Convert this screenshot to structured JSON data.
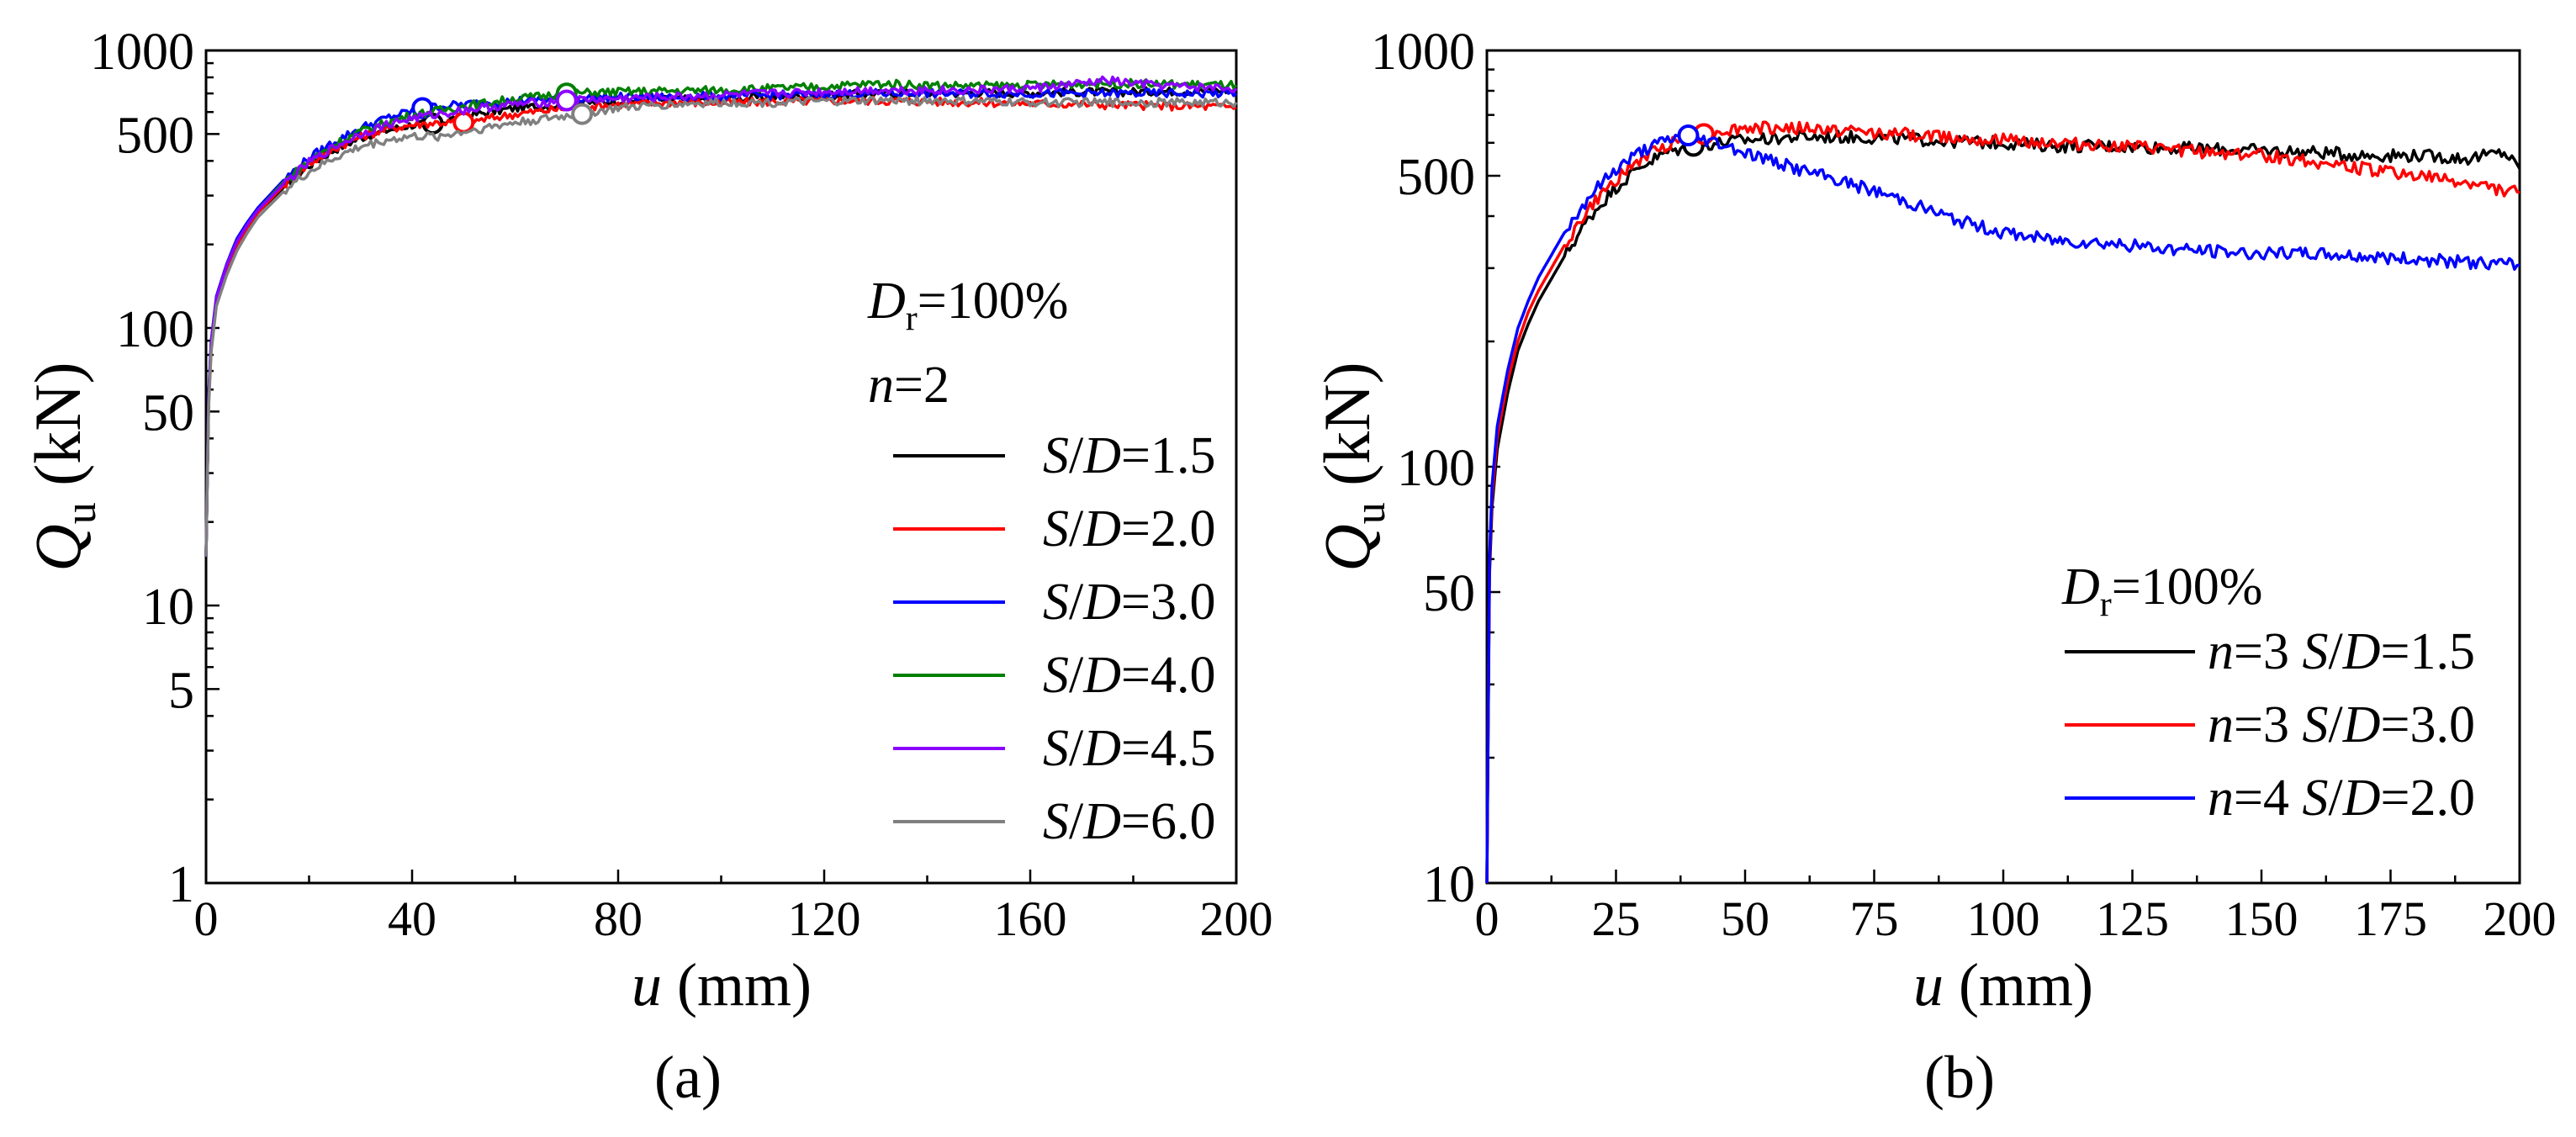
{
  "chart_data": [
    {
      "panel_label": "(a)",
      "type": "line",
      "y_scale": "log",
      "xlabel": "u (mm)",
      "ylabel": "Q_u (kN)",
      "xlim": [
        0,
        200
      ],
      "ylim": [
        1,
        1000
      ],
      "x_ticks": [
        0,
        40,
        80,
        120,
        160,
        200
      ],
      "y_ticks": [
        1,
        5,
        10,
        50,
        100,
        500,
        1000
      ],
      "legend_title_lines": [
        "D_r=100%",
        "n=2"
      ],
      "legend_placement": "right",
      "series": [
        {
          "name": "S/D=1.5",
          "color": "#000000",
          "label_parts": [
            "S",
            "/",
            "D",
            "=1.5"
          ],
          "peak": [
            44,
            545
          ],
          "x": [
            0,
            0.5,
            1,
            2,
            4,
            6,
            8,
            10,
            15,
            20,
            25,
            30,
            35,
            40,
            44,
            50,
            60,
            70,
            80,
            90,
            100,
            110,
            120,
            130,
            140,
            150,
            160,
            170,
            180,
            190,
            200
          ],
          "y": [
            15,
            55,
            85,
            125,
            165,
            200,
            230,
            260,
            320,
            385,
            440,
            485,
            515,
            540,
            545,
            580,
            620,
            640,
            660,
            665,
            670,
            680,
            690,
            700,
            700,
            705,
            705,
            710,
            710,
            715,
            720
          ]
        },
        {
          "name": "S/D=2.0",
          "color": "#ff0000",
          "label_parts": [
            "S",
            "/",
            "D",
            "=2.0"
          ],
          "peak": [
            50,
            550
          ],
          "x": [
            0,
            0.5,
            1,
            2,
            4,
            6,
            8,
            10,
            15,
            20,
            25,
            30,
            35,
            40,
            45,
            50,
            60,
            70,
            80,
            90,
            100,
            110,
            120,
            130,
            140,
            150,
            160,
            170,
            180,
            190,
            200
          ],
          "y": [
            15,
            55,
            85,
            125,
            165,
            200,
            230,
            260,
            325,
            390,
            445,
            490,
            520,
            540,
            550,
            550,
            590,
            620,
            640,
            650,
            650,
            655,
            660,
            660,
            655,
            650,
            645,
            640,
            635,
            630,
            625
          ]
        },
        {
          "name": "S/D=3.0",
          "color": "#0000ff",
          "label_parts": [
            "S",
            "/",
            "D",
            "=3.0"
          ],
          "peak": [
            42,
            620
          ],
          "x": [
            0,
            0.5,
            1,
            2,
            4,
            6,
            8,
            10,
            15,
            20,
            25,
            30,
            35,
            40,
            42,
            50,
            60,
            70,
            80,
            90,
            100,
            110,
            120,
            130,
            140,
            150,
            160,
            170,
            180,
            190,
            200
          ],
          "y": [
            15,
            58,
            90,
            130,
            170,
            210,
            240,
            270,
            340,
            410,
            470,
            525,
            570,
            605,
            620,
            640,
            660,
            670,
            680,
            680,
            685,
            690,
            695,
            700,
            700,
            700,
            700,
            700,
            700,
            700,
            700
          ]
        },
        {
          "name": "S/D=4.0",
          "color": "#008000",
          "label_parts": [
            "S",
            "/",
            "D",
            "=4.0"
          ],
          "peak": [
            70,
            700
          ],
          "x": [
            0,
            0.5,
            1,
            2,
            4,
            6,
            8,
            10,
            15,
            20,
            25,
            30,
            35,
            40,
            50,
            60,
            70,
            80,
            90,
            100,
            110,
            120,
            130,
            140,
            150,
            160,
            170,
            180,
            190,
            200
          ],
          "y": [
            15,
            56,
            88,
            128,
            168,
            205,
            235,
            265,
            335,
            400,
            460,
            510,
            550,
            585,
            630,
            670,
            700,
            710,
            715,
            720,
            730,
            740,
            760,
            750,
            745,
            750,
            760,
            760,
            755,
            750
          ]
        },
        {
          "name": "S/D=4.5",
          "color": "#8b00ff",
          "label_parts": [
            "S",
            "/",
            "D",
            "=4.5"
          ],
          "peak": [
            70,
            660
          ],
          "x": [
            0,
            0.5,
            1,
            2,
            4,
            6,
            8,
            10,
            15,
            20,
            25,
            30,
            35,
            40,
            50,
            60,
            70,
            80,
            90,
            100,
            110,
            120,
            130,
            140,
            150,
            160,
            170,
            175,
            180,
            190,
            200
          ],
          "y": [
            15,
            56,
            88,
            128,
            168,
            205,
            235,
            265,
            330,
            395,
            450,
            500,
            540,
            570,
            610,
            640,
            660,
            670,
            680,
            690,
            700,
            710,
            720,
            720,
            720,
            730,
            760,
            780,
            760,
            740,
            730
          ]
        },
        {
          "name": "S/D=6.0",
          "color": "#808080",
          "label_parts": [
            "S",
            "/",
            "D",
            "=6.0"
          ],
          "peak": [
            73,
            590
          ],
          "x": [
            0,
            0.5,
            1,
            2,
            4,
            6,
            8,
            10,
            15,
            20,
            25,
            30,
            35,
            40,
            45,
            50,
            60,
            73,
            80,
            90,
            100,
            110,
            120,
            130,
            140,
            150,
            160,
            170,
            180,
            190,
            200
          ],
          "y": [
            15,
            52,
            82,
            120,
            155,
            190,
            220,
            250,
            310,
            365,
            410,
            450,
            475,
            490,
            490,
            510,
            550,
            590,
            620,
            640,
            650,
            650,
            655,
            660,
            660,
            655,
            650,
            650,
            650,
            650,
            650
          ]
        }
      ]
    },
    {
      "panel_label": "(b)",
      "type": "line",
      "y_scale": "log",
      "xlabel": "u (mm)",
      "ylabel": "Q_u (kN)",
      "xlim": [
        0,
        200
      ],
      "ylim": [
        10,
        1000
      ],
      "x_ticks": [
        0,
        25,
        50,
        75,
        100,
        125,
        150,
        175,
        200
      ],
      "y_ticks": [
        10,
        50,
        100,
        500,
        1000
      ],
      "legend_title_lines": [
        "D_r=100%"
      ],
      "legend_placement": "bottom-right",
      "series": [
        {
          "name": "n=3 S/D=1.5",
          "color": "#000000",
          "label_parts": [
            "n",
            "=3 ",
            "S",
            "/",
            "D",
            "=1.5"
          ],
          "peak": [
            40,
            590
          ],
          "x": [
            0,
            0.5,
            1,
            2,
            4,
            6,
            8,
            10,
            15,
            20,
            25,
            30,
            35,
            40,
            50,
            60,
            70,
            80,
            90,
            100,
            110,
            120,
            130,
            140,
            150,
            160,
            170,
            180,
            190,
            197,
            200
          ],
          "y": [
            10,
            55,
            80,
            110,
            150,
            190,
            220,
            250,
            320,
            400,
            470,
            530,
            570,
            590,
            610,
            620,
            620,
            615,
            605,
            600,
            590,
            590,
            585,
            580,
            575,
            570,
            560,
            560,
            550,
            570,
            520
          ]
        },
        {
          "name": "n=3 S/D=3.0",
          "color": "#ff0000",
          "label_parts": [
            "n",
            "=3 ",
            "S",
            "/",
            "D",
            "=3.0"
          ],
          "peak": [
            42,
            630
          ],
          "x": [
            0,
            0.5,
            1,
            2,
            4,
            6,
            8,
            10,
            15,
            20,
            25,
            30,
            35,
            40,
            42,
            50,
            60,
            70,
            80,
            90,
            100,
            110,
            120,
            130,
            140,
            150,
            160,
            170,
            180,
            190,
            200
          ],
          "y": [
            10,
            58,
            85,
            118,
            160,
            200,
            235,
            265,
            340,
            420,
            490,
            550,
            595,
            625,
            630,
            650,
            650,
            640,
            630,
            620,
            610,
            600,
            590,
            580,
            570,
            560,
            540,
            520,
            500,
            480,
            455
          ]
        },
        {
          "name": "n=4 S/D=2.0",
          "color": "#0000ff",
          "label_parts": [
            "n",
            "=4 ",
            "S",
            "/",
            "D",
            "=2.0"
          ],
          "peak": [
            39,
            625
          ],
          "x": [
            0,
            0.5,
            1,
            2,
            4,
            6,
            8,
            10,
            15,
            20,
            25,
            30,
            35,
            39,
            45,
            50,
            60,
            70,
            80,
            90,
            100,
            110,
            120,
            130,
            140,
            150,
            160,
            170,
            180,
            190,
            200
          ],
          "y": [
            10,
            60,
            90,
            125,
            170,
            215,
            250,
            285,
            365,
            450,
            520,
            575,
            610,
            625,
            600,
            570,
            520,
            480,
            440,
            395,
            365,
            350,
            345,
            335,
            330,
            325,
            325,
            320,
            315,
            310,
            305
          ]
        }
      ]
    }
  ]
}
